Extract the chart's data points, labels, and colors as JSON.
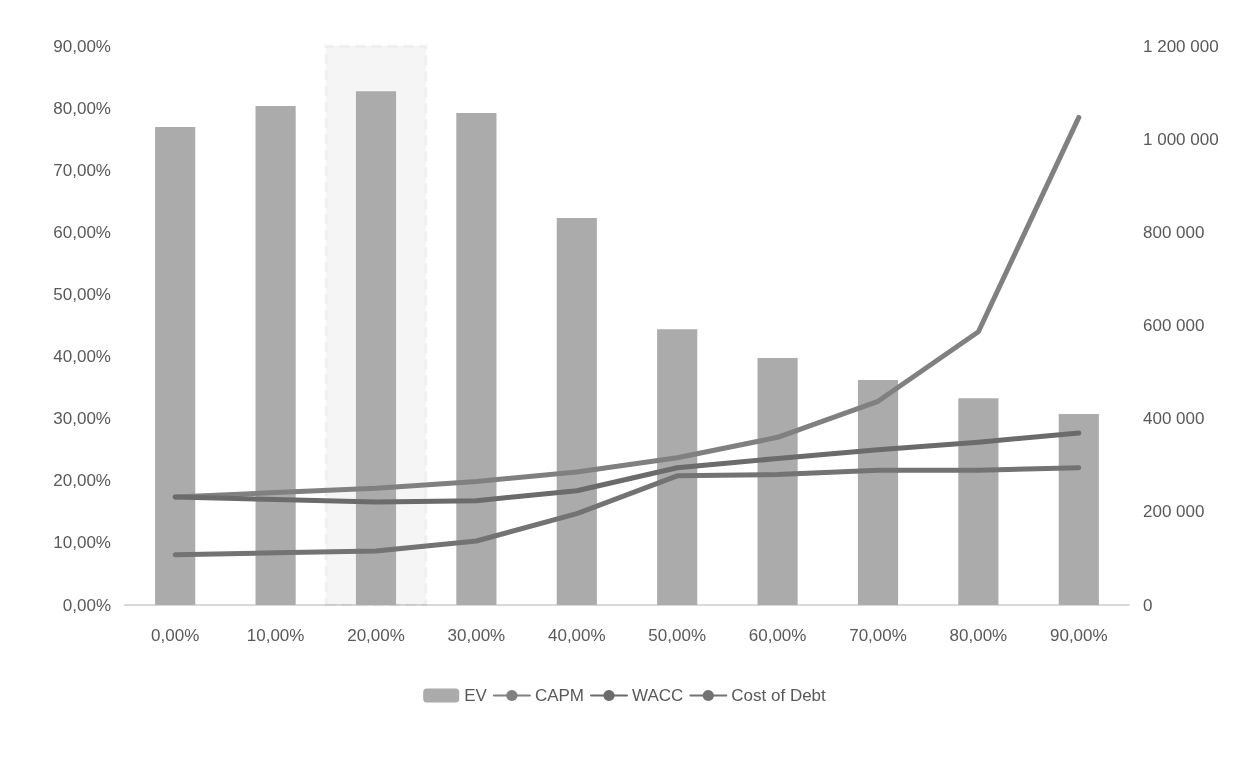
{
  "chart_data": {
    "type": "bar",
    "categories": [
      "0,00%",
      "10,00%",
      "20,00%",
      "30,00%",
      "40,00%",
      "50,00%",
      "60,00%",
      "70,00%",
      "80,00%",
      "90,00%"
    ],
    "series": [
      {
        "name": "EV",
        "axis": "y2",
        "color": "#ababab",
        "values": [
          1026000,
          1071000,
          1103000,
          1056000,
          831000,
          592000,
          530000,
          483000,
          444000,
          410000
        ]
      },
      {
        "name": "CAPM",
        "type": "line",
        "color": "#808080",
        "values": [
          17.4,
          18.1,
          18.8,
          19.9,
          21.4,
          23.7,
          27.0,
          32.8,
          44.0,
          78.5
        ]
      },
      {
        "name": "WACC",
        "type": "line",
        "color": "#6b6b6b",
        "values": [
          17.4,
          17.0,
          16.6,
          16.8,
          18.4,
          22.1,
          23.6,
          25.0,
          26.2,
          27.7
        ]
      },
      {
        "name": "Cost of Debt",
        "type": "line",
        "color": "#737373",
        "values": [
          8.1,
          8.4,
          8.7,
          10.3,
          14.7,
          20.8,
          21.0,
          21.7,
          21.7,
          22.1
        ]
      }
    ],
    "ylim": [
      0,
      90
    ],
    "yticks": [
      {
        "value": 0,
        "label": "0,00%"
      },
      {
        "value": 10,
        "label": "10,00%"
      },
      {
        "value": 20,
        "label": "20,00%"
      },
      {
        "value": 30,
        "label": "30,00%"
      },
      {
        "value": 40,
        "label": "40,00%"
      },
      {
        "value": 50,
        "label": "50,00%"
      },
      {
        "value": 60,
        "label": "60,00%"
      },
      {
        "value": 70,
        "label": "70,00%"
      },
      {
        "value": 80,
        "label": "80,00%"
      },
      {
        "value": 90,
        "label": "90,00%"
      }
    ],
    "y2lim": [
      0,
      1200000
    ],
    "y2ticks": [
      0,
      {
        "value": 200000,
        "label": "200 000"
      },
      {
        "value": 400000,
        "label": "400 000"
      },
      {
        "value": 600000,
        "label": "600 000"
      },
      {
        "value": 800000,
        "label": "800 000"
      },
      {
        "value": 1000000,
        "label": "1 000 000"
      },
      {
        "value": 1200000,
        "label": "1 200 000"
      }
    ],
    "bands": [
      {
        "axis": "x",
        "from": "20,00%",
        "to": "20,00%",
        "color": "#000000"
      }
    ],
    "legend": "bottom",
    "grid": false,
    "marker": "none",
    "line_style": "solid"
  }
}
